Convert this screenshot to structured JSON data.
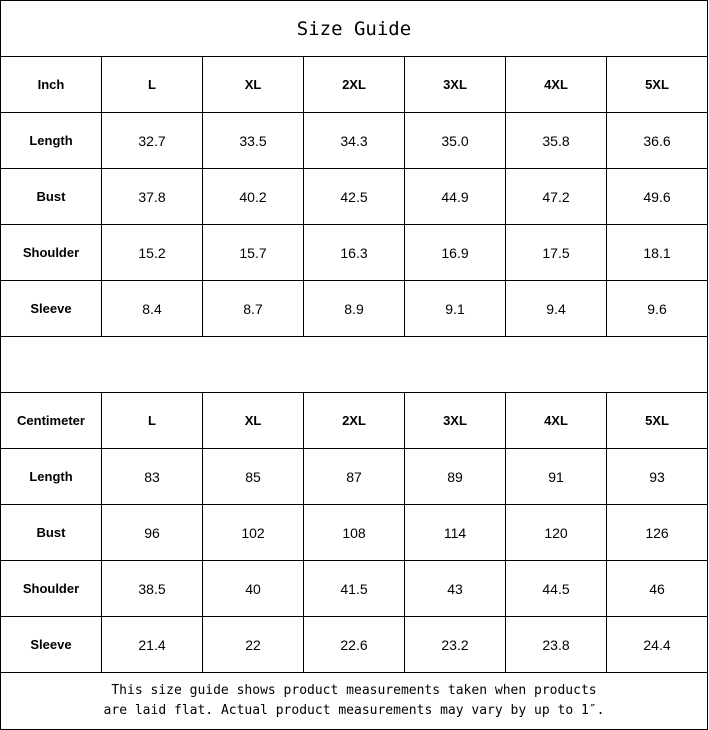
{
  "title": "Size Guide",
  "sizes": [
    "L",
    "XL",
    "2XL",
    "3XL",
    "4XL",
    "5XL"
  ],
  "inch": {
    "unit_label": "Inch",
    "rows": [
      {
        "label": "Length",
        "values": [
          "32.7",
          "33.5",
          "34.3",
          "35.0",
          "35.8",
          "36.6"
        ]
      },
      {
        "label": "Bust",
        "values": [
          "37.8",
          "40.2",
          "42.5",
          "44.9",
          "47.2",
          "49.6"
        ]
      },
      {
        "label": "Shoulder",
        "values": [
          "15.2",
          "15.7",
          "16.3",
          "16.9",
          "17.5",
          "18.1"
        ]
      },
      {
        "label": "Sleeve",
        "values": [
          "8.4",
          "8.7",
          "8.9",
          "9.1",
          "9.4",
          "9.6"
        ]
      }
    ]
  },
  "centimeter": {
    "unit_label": "Centimeter",
    "rows": [
      {
        "label": "Length",
        "values": [
          "83",
          "85",
          "87",
          "89",
          "91",
          "93"
        ]
      },
      {
        "label": "Bust",
        "values": [
          "96",
          "102",
          "108",
          "114",
          "120",
          "126"
        ]
      },
      {
        "label": "Shoulder",
        "values": [
          "38.5",
          "40",
          "41.5",
          "43",
          "44.5",
          "46"
        ]
      },
      {
        "label": "Sleeve",
        "values": [
          "21.4",
          "22",
          "22.6",
          "23.2",
          "23.8",
          "24.4"
        ]
      }
    ]
  },
  "footer": {
    "line1": "This size guide shows product measurements taken when products",
    "line2": "are laid flat. Actual product measurements may vary by up to 1″."
  }
}
